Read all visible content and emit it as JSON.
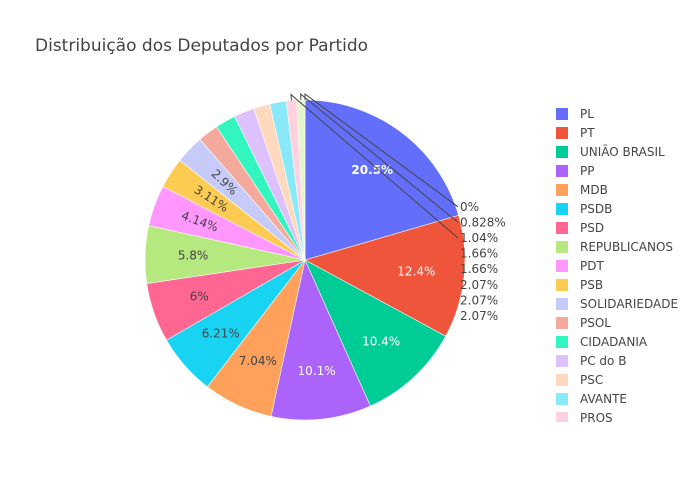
{
  "chart_data": {
    "type": "pie",
    "title": "Distribuição dos Deputados por Partido",
    "legend_position": "right",
    "slices": [
      {
        "label": "PL",
        "value": 20.5,
        "text": "20.5%",
        "color": "#636efa"
      },
      {
        "label": "PT",
        "value": 12.4,
        "text": "12.4%",
        "color": "#EF553B"
      },
      {
        "label": "UNIÃO BRASIL",
        "value": 10.4,
        "text": "10.4%",
        "color": "#00cc96"
      },
      {
        "label": "PP",
        "value": 10.1,
        "text": "10.1%",
        "color": "#ab63fa"
      },
      {
        "label": "MDB",
        "value": 7.04,
        "text": "7.04%",
        "color": "#FFA15A"
      },
      {
        "label": "PSDB",
        "value": 6.21,
        "text": "6.21%",
        "color": "#19d3f3"
      },
      {
        "label": "PSD",
        "value": 6.0,
        "text": "6%",
        "color": "#FF6692"
      },
      {
        "label": "REPUBLICANOS",
        "value": 5.8,
        "text": "5.8%",
        "color": "#B6E880"
      },
      {
        "label": "PDT",
        "value": 4.14,
        "text": "4.14%",
        "color": "#FF97FF"
      },
      {
        "label": "PSB",
        "value": 3.11,
        "text": "3.11%",
        "color": "#FECB52"
      },
      {
        "label": "SOLIDARIEDADE",
        "value": 2.9,
        "text": "2.9%",
        "color": "#c6cbfa"
      },
      {
        "label": "PSOL",
        "value": 2.07,
        "text": "2.07%",
        "color": "#f5a89c"
      },
      {
        "label": "CIDADANIA",
        "value": 2.07,
        "text": "2.07%",
        "color": "#33f5c0"
      },
      {
        "label": "PC do B",
        "value": 2.07,
        "text": "2.07%",
        "color": "#dcc1fc"
      },
      {
        "label": "PSC",
        "value": 1.66,
        "text": "1.66%",
        "color": "#ffd9bd"
      },
      {
        "label": "AVANTE",
        "value": 1.66,
        "text": "1.66%",
        "color": "#8ae9f9"
      },
      {
        "label": "PROS",
        "value": 1.04,
        "text": "1.04%",
        "color": "#ffd1de"
      },
      {
        "label": "",
        "value": 0.828,
        "text": "0.828%",
        "color": "#e2f5cc"
      },
      {
        "label": "",
        "value": 0,
        "text": "0%",
        "color": "#ffd5ff"
      }
    ]
  }
}
